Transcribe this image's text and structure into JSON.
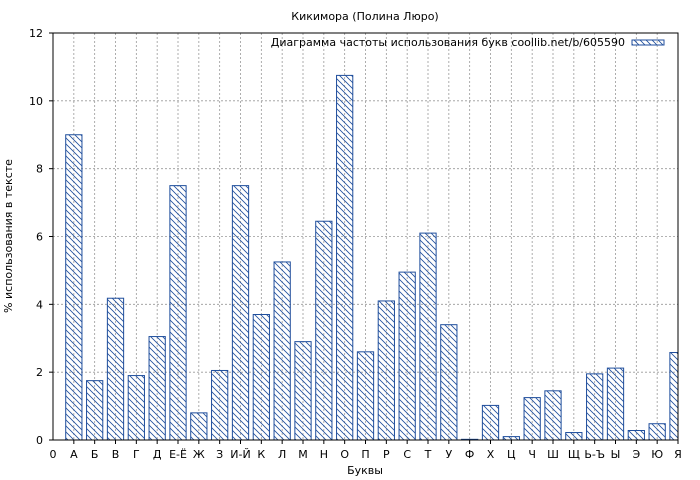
{
  "chart_data": {
    "type": "bar",
    "title": "Кикимора (Полина Люро)",
    "xlabel": "Буквы",
    "ylabel": "% использования в тексте",
    "ylim": [
      0,
      12
    ],
    "yticks": [
      0,
      2,
      4,
      6,
      8,
      10,
      12
    ],
    "x_origin_label": "0",
    "grid": true,
    "legend_position": "top-right",
    "bar_color": "#1f4e9c",
    "series": [
      {
        "name": "Диаграмма частоты использования букв coollib.net/b/605590",
        "values": [
          9.0,
          1.75,
          4.18,
          1.9,
          3.05,
          7.5,
          0.8,
          2.05,
          7.5,
          3.7,
          5.25,
          2.9,
          6.45,
          10.75,
          2.6,
          4.1,
          4.95,
          6.1,
          3.4,
          0.02,
          1.02,
          0.1,
          1.25,
          1.45,
          0.22,
          1.95,
          2.12,
          0.28,
          0.48,
          2.58
        ]
      }
    ],
    "categories": [
      "А",
      "Б",
      "В",
      "Г",
      "Д",
      "Е-Ё",
      "Ж",
      "З",
      "И-Й",
      "К",
      "Л",
      "М",
      "Н",
      "О",
      "П",
      "Р",
      "С",
      "Т",
      "У",
      "Ф",
      "Х",
      "Ц",
      "Ч",
      "Ш",
      "Щ",
      "Ь-Ъ",
      "Ы",
      "Э",
      "Ю",
      "Я"
    ]
  }
}
